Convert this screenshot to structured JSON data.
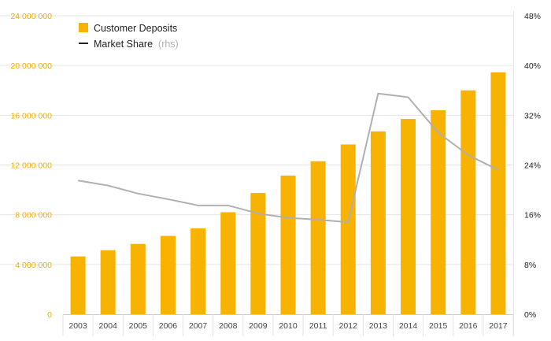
{
  "chart_data": {
    "type": "bar",
    "categories": [
      "2003",
      "2004",
      "2005",
      "2006",
      "2007",
      "2008",
      "2009",
      "2010",
      "2011",
      "2012",
      "2013",
      "2014",
      "2015",
      "2016",
      "2017"
    ],
    "series": [
      {
        "name": "Customer Deposits",
        "type": "bar",
        "axis": "left",
        "values": [
          4650000,
          5150000,
          5650000,
          6300000,
          6900000,
          8200000,
          9750000,
          11150000,
          12300000,
          13650000,
          14700000,
          15700000,
          16400000,
          18000000,
          19450000
        ]
      },
      {
        "name": "Market Share",
        "name_suffix": "(rhs)",
        "type": "line",
        "axis": "right",
        "values": [
          21.5,
          20.7,
          19.4,
          18.5,
          17.5,
          17.5,
          16.2,
          15.5,
          15.2,
          14.8,
          35.5,
          34.9,
          29.2,
          25.6,
          23.2
        ]
      }
    ],
    "y_left": {
      "lim": [
        0,
        24000000
      ],
      "ticks": [
        0,
        4000000,
        8000000,
        12000000,
        16000000,
        20000000,
        24000000
      ],
      "tick_labels": [
        "0",
        "4 000 000",
        "8 000 000",
        "12 000 000",
        "16 000 000",
        "20 000 000",
        "24 000 000"
      ]
    },
    "y_right": {
      "lim": [
        0,
        48
      ],
      "ticks": [
        0,
        8,
        16,
        24,
        32,
        40,
        48
      ],
      "tick_labels": [
        "0%",
        "8%",
        "16%",
        "24%",
        "32%",
        "40%",
        "48%"
      ]
    },
    "grid": true,
    "legend_position": "top-left",
    "colors": {
      "bar": "#f8b200",
      "line": "#b0b0b0",
      "legend_line": "#222222",
      "left_axis_text": "#f5ad00",
      "right_axis_text": "#222222",
      "grid": "#e6e6e6"
    }
  }
}
